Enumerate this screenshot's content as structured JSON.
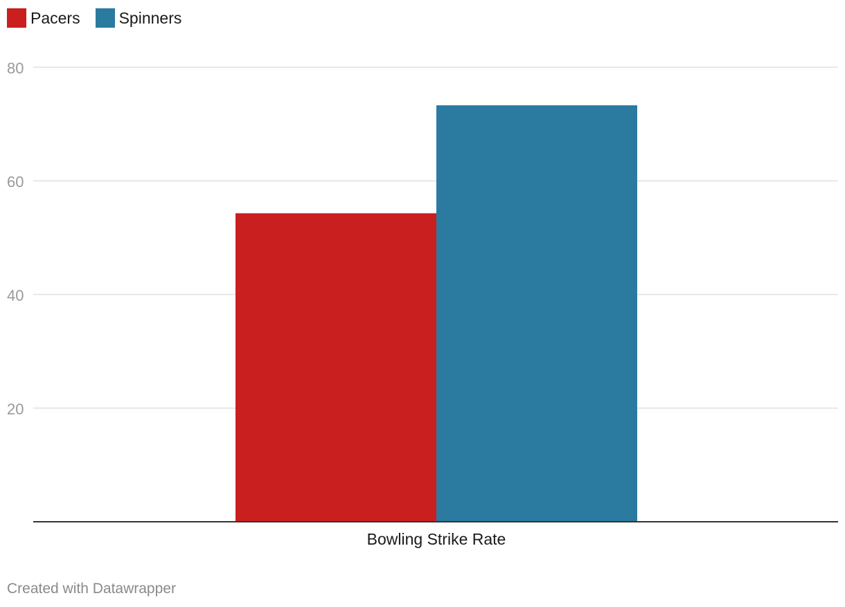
{
  "chart_data": {
    "type": "bar",
    "categories": [
      "Bowling Strike Rate"
    ],
    "series": [
      {
        "name": "Pacers",
        "values": [
          54.3
        ],
        "color": "#c91f1f"
      },
      {
        "name": "Spinners",
        "values": [
          73.3
        ],
        "color": "#2b7ba0"
      }
    ],
    "title": "",
    "xlabel": "",
    "ylabel": "",
    "ylim": [
      0,
      80
    ],
    "y_ticks": [
      "20",
      "40",
      "60",
      "80"
    ],
    "grid": true,
    "legend_position": "top-left"
  },
  "footer": {
    "credit": "Created with Datawrapper"
  }
}
